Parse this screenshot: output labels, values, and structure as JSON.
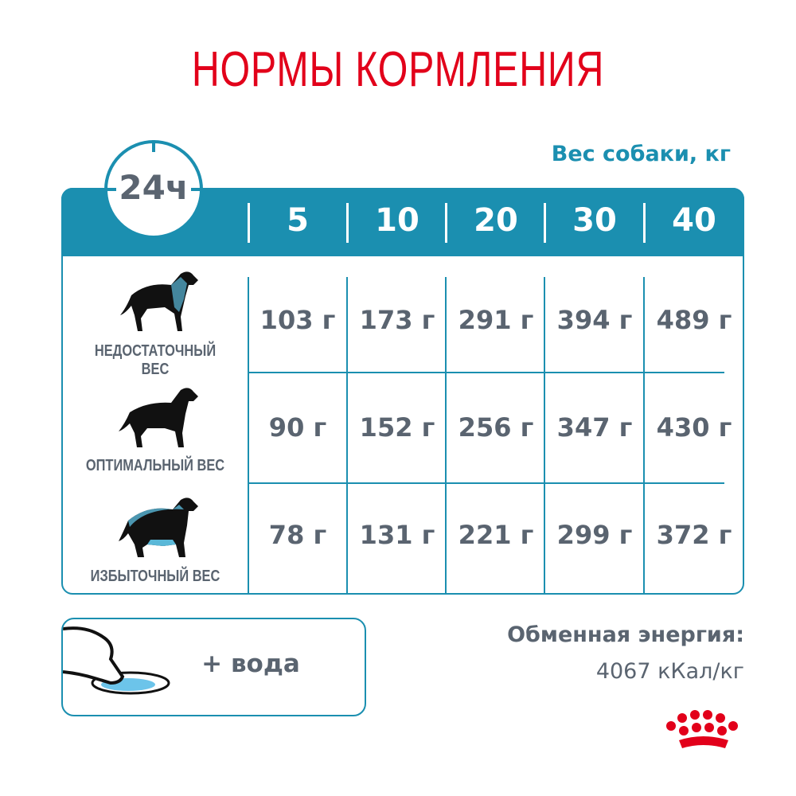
{
  "title": "НОРМЫ КОРМЛЕНИЯ",
  "clock_label": "24ч",
  "weight_header": "Вес собаки, кг",
  "weights": [
    "5",
    "10",
    "20",
    "30",
    "40"
  ],
  "rows": [
    {
      "label": "НЕДОСТАТОЧНЫЙ ВЕС",
      "icon": "underweight-dog-icon",
      "values": [
        "103 г",
        "173 г",
        "291 г",
        "394 г",
        "489 г"
      ]
    },
    {
      "label": "ОПТИМАЛЬНЫЙ ВЕС",
      "icon": "optimal-weight-dog-icon",
      "values": [
        "90 г",
        "152 г",
        "256 г",
        "347 г",
        "430 г"
      ]
    },
    {
      "label": "ИЗБЫТОЧНЫЙ ВЕС",
      "icon": "overweight-dog-icon",
      "values": [
        "78 г",
        "131 г",
        "221 г",
        "299 г",
        "372 г"
      ]
    }
  ],
  "water": {
    "label": "+ вода",
    "icon": "dog-drinking-water-icon"
  },
  "energy": {
    "label": "Обменная энергия:",
    "value": "4067 кКал/кг"
  },
  "logo": {
    "name": "Royal Canin crown logo",
    "icon": "crown-logo-icon"
  },
  "colors": {
    "title": "#e2001a",
    "accent": "#1b8fb0",
    "text": "#5a6470",
    "water": "#6cc4ea"
  }
}
